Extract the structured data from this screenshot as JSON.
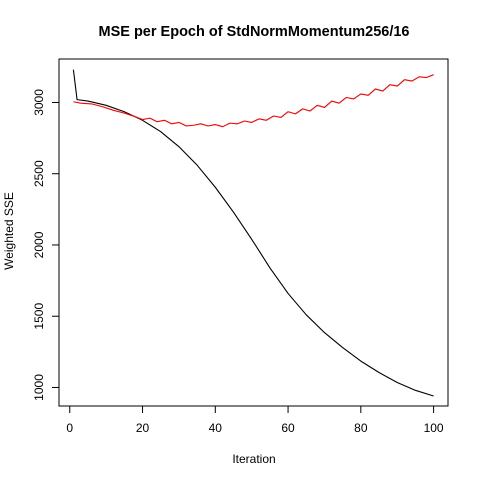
{
  "chart_data": {
    "type": "line",
    "title": "MSE per Epoch of StdNormMomentum256/16",
    "xlabel": "Iteration",
    "ylabel": "Weighted SSE",
    "xlim": [
      -2.96,
      103.96
    ],
    "ylim": [
      870,
      3305
    ],
    "xticks": [
      0,
      20,
      40,
      60,
      80,
      100
    ],
    "yticks": [
      1000,
      1500,
      2000,
      2500,
      3000
    ],
    "grid": false,
    "legend": "none",
    "series": [
      {
        "color": "#000000",
        "x": [
          1,
          2,
          5,
          10,
          15,
          20,
          25,
          30,
          35,
          40,
          45,
          50,
          55,
          60,
          65,
          70,
          75,
          80,
          85,
          90,
          95,
          100
        ],
        "y": [
          3230,
          3020,
          3010,
          2980,
          2935,
          2875,
          2795,
          2690,
          2560,
          2405,
          2230,
          2040,
          1840,
          1660,
          1510,
          1385,
          1280,
          1185,
          1105,
          1035,
          980,
          940
        ]
      },
      {
        "color": "#ff0000",
        "x": [
          1,
          3,
          6,
          9,
          12,
          15,
          18,
          20,
          22,
          24,
          26,
          28,
          30,
          32,
          34,
          36,
          38,
          40,
          42,
          44,
          46,
          48,
          50,
          52,
          54,
          56,
          58,
          60,
          62,
          64,
          66,
          68,
          70,
          72,
          74,
          76,
          78,
          80,
          82,
          84,
          86,
          88,
          90,
          92,
          94,
          96,
          98,
          100
        ],
        "y": [
          3005,
          2995,
          2990,
          2970,
          2945,
          2925,
          2900,
          2880,
          2890,
          2865,
          2875,
          2850,
          2860,
          2835,
          2840,
          2850,
          2835,
          2845,
          2830,
          2855,
          2850,
          2870,
          2860,
          2885,
          2875,
          2905,
          2895,
          2935,
          2920,
          2955,
          2940,
          2980,
          2965,
          3010,
          2995,
          3035,
          3025,
          3060,
          3050,
          3095,
          3080,
          3125,
          3115,
          3160,
          3150,
          3180,
          3175,
          3195
        ]
      }
    ]
  }
}
